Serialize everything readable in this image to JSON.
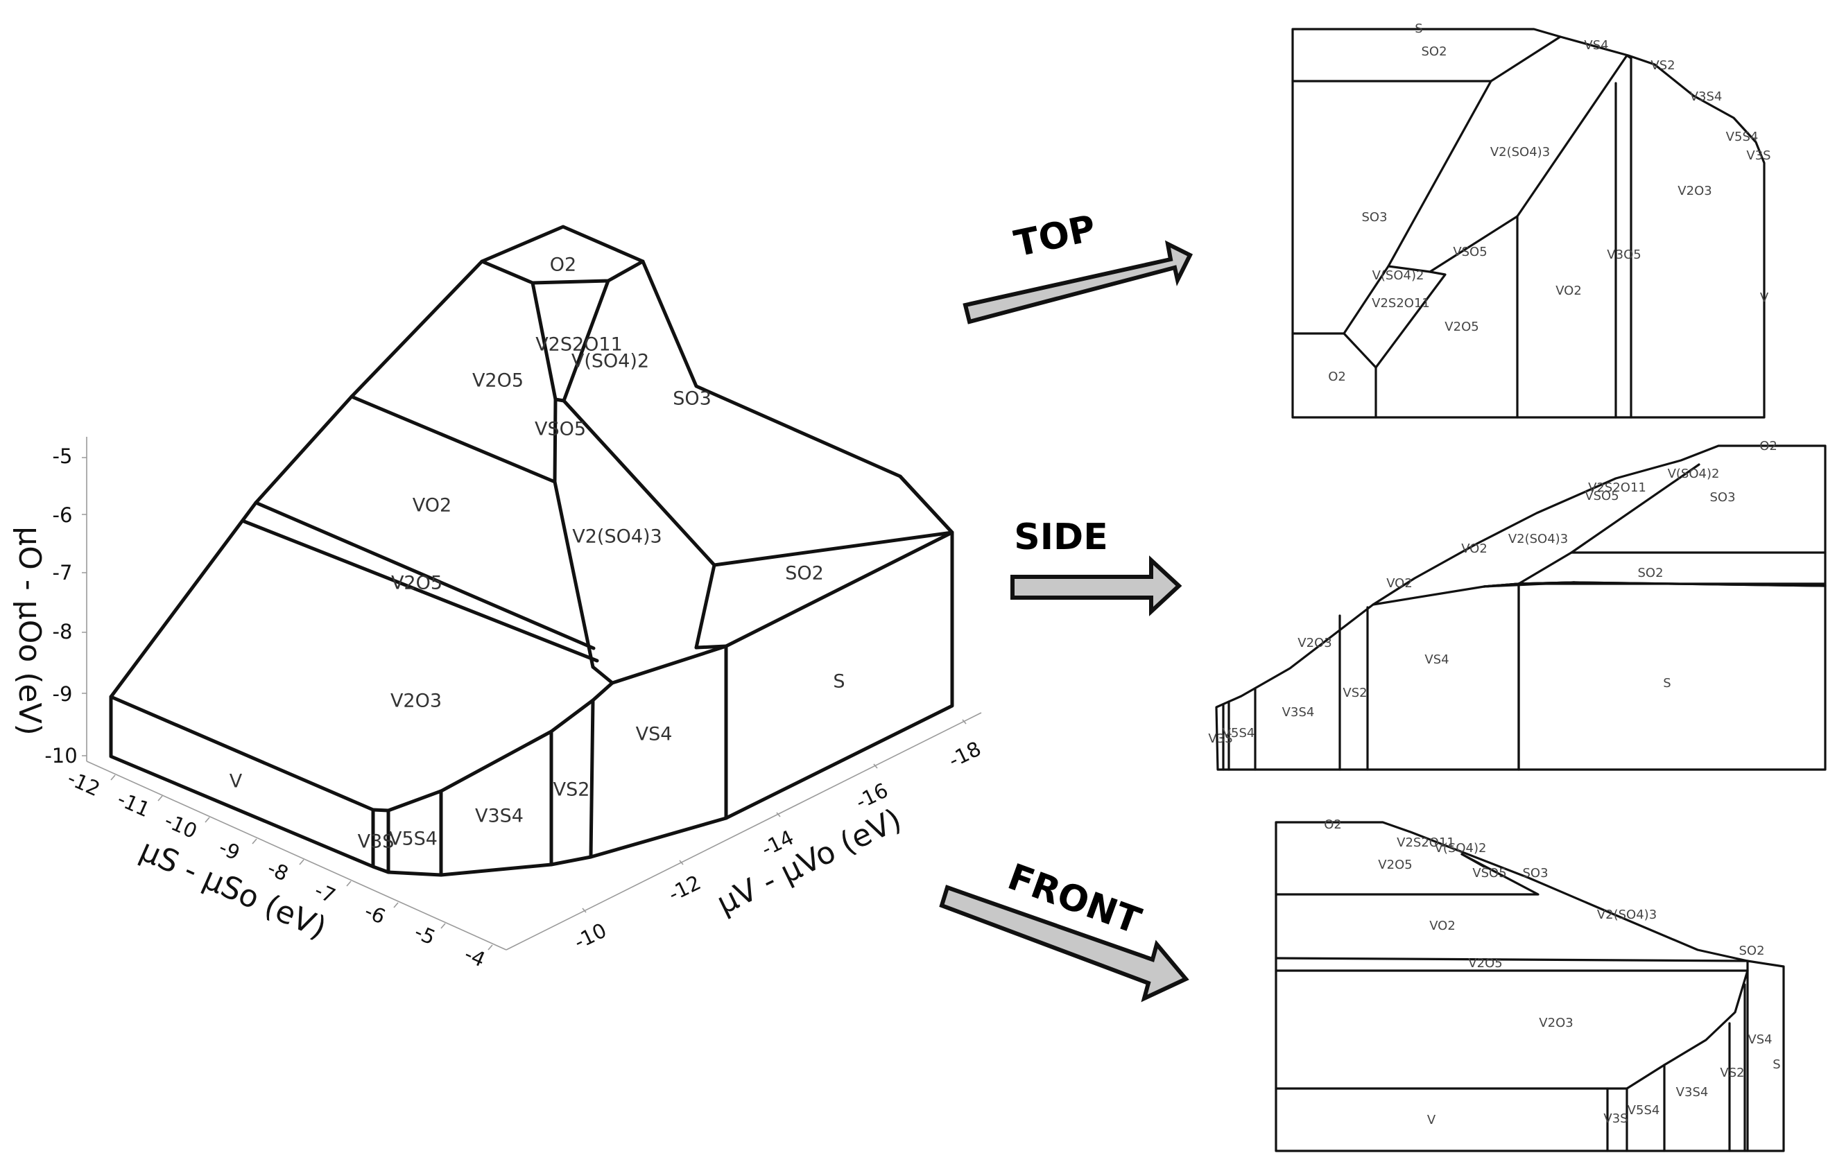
{
  "views": {
    "top": "TOP",
    "side": "SIDE",
    "front": "FRONT"
  },
  "axes": {
    "vertical": {
      "label": "μO - μOo (eV)",
      "ticks": [
        "-5",
        "-6",
        "-7",
        "-8",
        "-9",
        "-10"
      ]
    },
    "left": {
      "label": "μS - μSo (eV)",
      "ticks": [
        "-12",
        "-11",
        "-10",
        "-9",
        "-8",
        "-7",
        "-6",
        "-5",
        "-4"
      ]
    },
    "right": {
      "label": "μV - μVo (eV)",
      "ticks": [
        "-10",
        "-12",
        "-14",
        "-16",
        "-18"
      ]
    }
  },
  "phases3d": {
    "O2": "O2",
    "V2S2O11": "V2S2O11",
    "VSO4_2": "V(SO4)2",
    "V2O5_top": "V2O5",
    "SO3": "SO3",
    "VSO5": "VSO5",
    "VO2": "VO2",
    "V2SO4_3": "V2(SO4)3",
    "V2O5_band": "V2O5",
    "SO2": "SO2",
    "V2O3": "V2O3",
    "S": "S",
    "VS4": "VS4",
    "VS2": "VS2",
    "V3S4": "V3S4",
    "V": "V",
    "V3S": "V3S",
    "V5S4": "V5S4"
  },
  "top_view": [
    "S",
    "SO2",
    "VS4",
    "VS2",
    "V3S4",
    "V5S4",
    "V3S",
    "SO3",
    "V2(SO4)3",
    "V2O3",
    "VSO5",
    "V3O5",
    "V(SO4)2",
    "VO2",
    "V2S2O11",
    "V2O5",
    "O2",
    "V"
  ],
  "side_view": [
    "O2",
    "V(SO4)2",
    "VSO5",
    "V2S2O11",
    "SO3",
    "VO2",
    "V2(SO4)3",
    "SO2",
    "VO2",
    "VS4",
    "V2O3",
    "VS2",
    "V3S4",
    "V5S4",
    "V3S",
    "S"
  ],
  "front_view": [
    "O2",
    "V2S2O11",
    "V(SO4)2",
    "V2O5",
    "VSO5",
    "SO3",
    "VO2",
    "V2(SO4)3",
    "V2O5",
    "SO2",
    "V2O3",
    "VS4",
    "VS2",
    "S",
    "V3S4",
    "V5S4",
    "V3S",
    "V"
  ]
}
